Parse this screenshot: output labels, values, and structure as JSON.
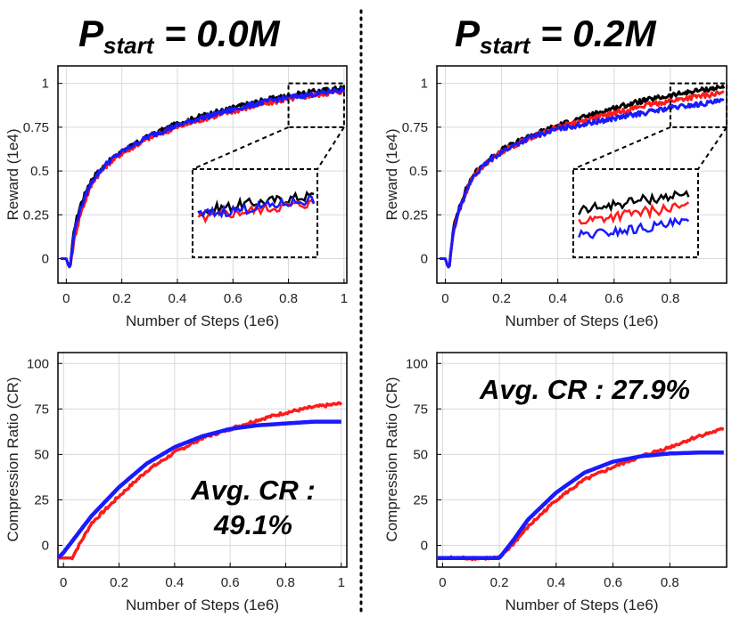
{
  "figure": {
    "panel_titles": [
      {
        "main": "P",
        "sub": "start",
        "rest": " = 0.0M"
      },
      {
        "main": "P",
        "sub": "start",
        "rest": " = 0.2M"
      }
    ],
    "colors": {
      "black": "#000000",
      "red": "#ff1a1a",
      "blue": "#1a1aff",
      "grid": "#d9d9d9",
      "annotation": "#ff1a1a"
    }
  },
  "chart_data": [
    {
      "id": "reward-left",
      "type": "line",
      "title": "P_start = 0.0M",
      "xlabel": "Number of Steps (1e6)",
      "ylabel": "Reward (1e4)",
      "xlim": [
        -0.03,
        1.01
      ],
      "ylim": [
        -0.14,
        1.1
      ],
      "xticks": [
        0,
        0.2,
        0.4,
        0.6,
        0.8,
        1
      ],
      "xtick_labels": [
        "0",
        "0.2",
        "0.4",
        "0.6",
        "0.8",
        "1"
      ],
      "yticks": [
        0,
        0.25,
        0.5,
        0.75,
        1
      ],
      "ytick_labels": [
        "0",
        "0.25",
        "0.5",
        "0.75",
        "1"
      ],
      "grid": true,
      "x": [
        -0.02,
        0.0,
        0.01,
        0.015,
        0.02,
        0.03,
        0.05,
        0.08,
        0.1,
        0.15,
        0.2,
        0.3,
        0.4,
        0.5,
        0.6,
        0.7,
        0.8,
        0.9,
        1.0
      ],
      "series": [
        {
          "name": "black",
          "color": "#000000",
          "values": [
            0,
            0,
            -0.05,
            -0.04,
            0.05,
            0.18,
            0.3,
            0.42,
            0.47,
            0.55,
            0.61,
            0.7,
            0.77,
            0.82,
            0.86,
            0.9,
            0.93,
            0.955,
            0.975
          ]
        },
        {
          "name": "red",
          "color": "#ff1a1a",
          "values": [
            0,
            0,
            -0.05,
            -0.04,
            0.02,
            0.12,
            0.25,
            0.38,
            0.45,
            0.54,
            0.6,
            0.69,
            0.75,
            0.8,
            0.84,
            0.88,
            0.91,
            0.935,
            0.955
          ]
        },
        {
          "name": "blue",
          "color": "#1a1aff",
          "values": [
            0,
            0,
            -0.05,
            -0.04,
            0.04,
            0.16,
            0.28,
            0.4,
            0.46,
            0.55,
            0.61,
            0.7,
            0.76,
            0.81,
            0.85,
            0.89,
            0.92,
            0.94,
            0.965
          ]
        }
      ],
      "inset": {
        "source_x": [
          0.8,
          1.0
        ],
        "source_y": [
          0.75,
          1.0
        ],
        "placement": "lower-right"
      }
    },
    {
      "id": "reward-right",
      "type": "line",
      "title": "P_start = 0.2M",
      "xlabel": "Number of Steps (1e6)",
      "ylabel": "Reward (1e4)",
      "xlim": [
        -0.03,
        1.0
      ],
      "ylim": [
        -0.14,
        1.1
      ],
      "xticks": [
        0,
        0.2,
        0.4,
        0.6,
        0.8
      ],
      "xtick_labels": [
        "0",
        "0.2",
        "0.4",
        "0.6",
        "0.8"
      ],
      "yticks": [
        0,
        0.25,
        0.5,
        0.75,
        1
      ],
      "ytick_labels": [
        "0",
        "0.25",
        "0.5",
        "0.75",
        "1"
      ],
      "grid": true,
      "x": [
        -0.02,
        0.0,
        0.01,
        0.015,
        0.02,
        0.03,
        0.05,
        0.08,
        0.1,
        0.15,
        0.2,
        0.3,
        0.4,
        0.5,
        0.6,
        0.7,
        0.8,
        0.9,
        0.99
      ],
      "series": [
        {
          "name": "black",
          "color": "#000000",
          "values": [
            0,
            0,
            -0.05,
            -0.04,
            0.05,
            0.18,
            0.3,
            0.42,
            0.48,
            0.56,
            0.62,
            0.7,
            0.76,
            0.81,
            0.86,
            0.9,
            0.93,
            0.96,
            0.98
          ]
        },
        {
          "name": "red",
          "color": "#ff1a1a",
          "values": [
            0,
            0,
            -0.05,
            -0.04,
            0.04,
            0.16,
            0.28,
            0.4,
            0.47,
            0.55,
            0.61,
            0.69,
            0.75,
            0.79,
            0.83,
            0.87,
            0.9,
            0.925,
            0.945
          ]
        },
        {
          "name": "blue",
          "color": "#1a1aff",
          "values": [
            0,
            0,
            -0.05,
            -0.04,
            0.04,
            0.16,
            0.28,
            0.4,
            0.47,
            0.55,
            0.61,
            0.69,
            0.74,
            0.77,
            0.8,
            0.83,
            0.86,
            0.88,
            0.9
          ]
        }
      ],
      "inset": {
        "source_x": [
          0.8,
          1.0
        ],
        "source_y": [
          0.75,
          1.0
        ],
        "placement": "lower-right"
      }
    },
    {
      "id": "cr-left",
      "type": "line",
      "xlabel": "Number of Steps (1e6)",
      "ylabel": "Compression Ratio (CR)",
      "xlim": [
        -0.02,
        1.02
      ],
      "ylim": [
        -12,
        106
      ],
      "xticks": [
        0,
        0.2,
        0.4,
        0.6,
        0.8,
        1
      ],
      "xtick_labels": [
        "0",
        "0.2",
        "0.4",
        "0.6",
        "0.8",
        "1"
      ],
      "yticks": [
        0,
        25,
        50,
        75,
        100
      ],
      "ytick_labels": [
        "0",
        "25",
        "50",
        "75",
        "100"
      ],
      "grid": true,
      "x": [
        -0.02,
        0.0,
        0.03,
        0.1,
        0.2,
        0.3,
        0.4,
        0.5,
        0.6,
        0.7,
        0.8,
        0.9,
        1.0
      ],
      "series": [
        {
          "name": "red",
          "color": "#ff1a1a",
          "values": [
            -7,
            -7,
            -7,
            12,
            27,
            41,
            51,
            59,
            64,
            69,
            73,
            76,
            78
          ]
        },
        {
          "name": "blue",
          "color": "#1a1aff",
          "values": [
            -7,
            -4,
            2,
            16,
            32,
            45,
            54,
            60,
            64,
            66,
            67,
            68,
            68
          ]
        }
      ],
      "annotation": {
        "line1": "Avg. CR :",
        "line2": "49.1%"
      }
    },
    {
      "id": "cr-right",
      "type": "line",
      "xlabel": "Number of Steps (1e6)",
      "ylabel": "Compression Ratio (CR)",
      "xlim": [
        -0.02,
        1.0
      ],
      "ylim": [
        -12,
        106
      ],
      "xticks": [
        0,
        0.2,
        0.4,
        0.6,
        0.8
      ],
      "xtick_labels": [
        "0",
        "0.2",
        "0.4",
        "0.6",
        "0.8"
      ],
      "yticks": [
        0,
        25,
        50,
        75,
        100
      ],
      "ytick_labels": [
        "0",
        "25",
        "50",
        "75",
        "100"
      ],
      "grid": true,
      "x": [
        -0.02,
        0.0,
        0.1,
        0.2,
        0.25,
        0.3,
        0.4,
        0.5,
        0.6,
        0.7,
        0.8,
        0.9,
        0.99
      ],
      "series": [
        {
          "name": "red",
          "color": "#ff1a1a",
          "values": [
            -7,
            -7,
            -7,
            -7,
            1,
            10,
            25,
            36,
            43,
            49,
            54,
            60,
            64
          ]
        },
        {
          "name": "blue",
          "color": "#1a1aff",
          "values": [
            -7,
            -7,
            -7,
            -7,
            3,
            14,
            29,
            40,
            46,
            49,
            50.5,
            51,
            51
          ]
        }
      ],
      "annotation": {
        "line1": "Avg. CR : 27.9%"
      }
    }
  ]
}
